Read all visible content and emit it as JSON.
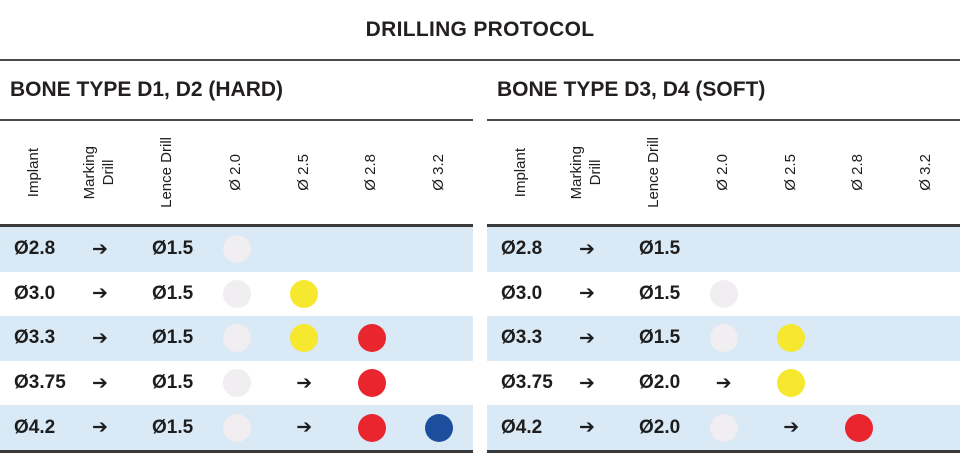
{
  "title": "DRILLING PROTOCOL",
  "glyphs": {
    "arrow": "➔"
  },
  "colors": {
    "stripe_row": "#d9e9f5",
    "rule_dark": "#3a3a3a",
    "text": "#1d1d1d",
    "dots": {
      "white": "#f0eef0",
      "yellow": "#f6e72f",
      "red": "#e9262e",
      "blue": "#1d4d9d"
    }
  },
  "columns": [
    "Implant",
    "Marking\nDrill",
    "Lence Drill",
    "Ø 2.0",
    "Ø 2.5",
    "Ø 2.8",
    "Ø 3.2"
  ],
  "tables": [
    {
      "title": "BONE TYPE D1, D2 (HARD)",
      "rows": [
        {
          "implant": "Ø2.8",
          "lence": "Ø1.5",
          "cells": [
            "white",
            "",
            "",
            ""
          ]
        },
        {
          "implant": "Ø3.0",
          "lence": "Ø1.5",
          "cells": [
            "white",
            "yellow",
            "",
            ""
          ]
        },
        {
          "implant": "Ø3.3",
          "lence": "Ø1.5",
          "cells": [
            "white",
            "yellow",
            "red",
            ""
          ]
        },
        {
          "implant": "Ø3.75",
          "lence": "Ø1.5",
          "cells": [
            "white",
            "arrow",
            "red",
            ""
          ]
        },
        {
          "implant": "Ø4.2",
          "lence": "Ø1.5",
          "cells": [
            "white",
            "arrow",
            "red",
            "blue"
          ]
        }
      ]
    },
    {
      "title": "BONE TYPE D3, D4 (SOFT)",
      "rows": [
        {
          "implant": "Ø2.8",
          "lence": "Ø1.5",
          "cells": [
            "",
            "",
            "",
            ""
          ]
        },
        {
          "implant": "Ø3.0",
          "lence": "Ø1.5",
          "cells": [
            "white",
            "",
            "",
            ""
          ]
        },
        {
          "implant": "Ø3.3",
          "lence": "Ø1.5",
          "cells": [
            "white",
            "yellow",
            "",
            ""
          ]
        },
        {
          "implant": "Ø3.75",
          "lence": "Ø2.0",
          "cells": [
            "arrow",
            "yellow",
            "",
            ""
          ]
        },
        {
          "implant": "Ø4.2",
          "lence": "Ø2.0",
          "cells": [
            "white",
            "arrow",
            "red",
            ""
          ]
        }
      ]
    }
  ]
}
